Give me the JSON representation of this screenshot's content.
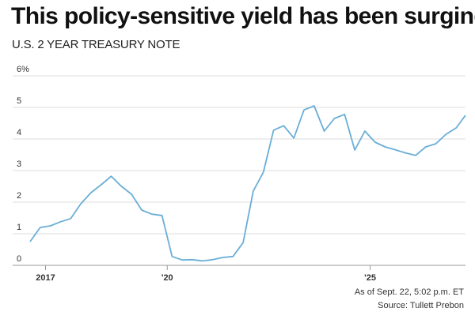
{
  "title": "This policy-sensitive yield has been surging",
  "subtitle": "U.S. 2 YEAR TREASURY NOTE",
  "footnote": "As of Sept. 22, 5:02 p.m. ET",
  "source": "Source: Tullett Prebon",
  "colors": {
    "line": "#6aaed6",
    "grid": "#dddddd",
    "axis": "#999999"
  },
  "chart_data": {
    "type": "line",
    "title": "This policy-sensitive yield has been surging",
    "subtitle": "U.S. 2 YEAR TREASURY NOTE",
    "xlabel": "",
    "ylabel": "",
    "xlim": [
      2016.6,
      2027.35
    ],
    "ylim": [
      0,
      6
    ],
    "y_ticks": [
      {
        "value": 6,
        "label": "6%"
      },
      {
        "value": 5,
        "label": "5"
      },
      {
        "value": 4,
        "label": "4"
      },
      {
        "value": 3,
        "label": "3"
      },
      {
        "value": 2,
        "label": "2"
      },
      {
        "value": 1,
        "label": "1"
      },
      {
        "value": 0,
        "label": "0"
      }
    ],
    "x_ticks": [
      {
        "value": 2017,
        "label": "2017"
      },
      {
        "value": 2020,
        "label": "'20"
      },
      {
        "value": 2025,
        "label": "'25"
      }
    ],
    "grid": true,
    "series": [
      {
        "x": [
          2016.62,
          2016.87,
          2017.12,
          2017.37,
          2017.62,
          2017.87,
          2018.12,
          2018.37,
          2018.62,
          2018.87,
          2019.12,
          2019.37,
          2019.62,
          2019.87,
          2020.12,
          2020.37,
          2020.62,
          2020.87,
          2021.12,
          2021.37,
          2021.62,
          2021.87,
          2022.12,
          2022.37,
          2022.62,
          2022.87,
          2023.12,
          2023.37,
          2023.62,
          2023.87,
          2024.12,
          2024.37,
          2024.62,
          2024.87,
          2025.12,
          2025.37,
          2025.62,
          2025.87,
          2026.12,
          2026.37,
          2026.62,
          2026.87,
          2027.12,
          2027.35
        ],
        "values": [
          0.75,
          1.2,
          1.25,
          1.38,
          1.48,
          1.95,
          2.3,
          2.55,
          2.82,
          2.5,
          2.25,
          1.75,
          1.62,
          1.58,
          0.28,
          0.17,
          0.18,
          0.14,
          0.18,
          0.25,
          0.28,
          0.72,
          2.35,
          2.95,
          4.28,
          4.42,
          4.03,
          4.92,
          5.05,
          4.25,
          4.65,
          4.78,
          3.65,
          4.25,
          3.9,
          3.75,
          3.66,
          3.56,
          3.48,
          3.75,
          3.85,
          4.15,
          4.35,
          4.75
        ]
      }
    ]
  }
}
